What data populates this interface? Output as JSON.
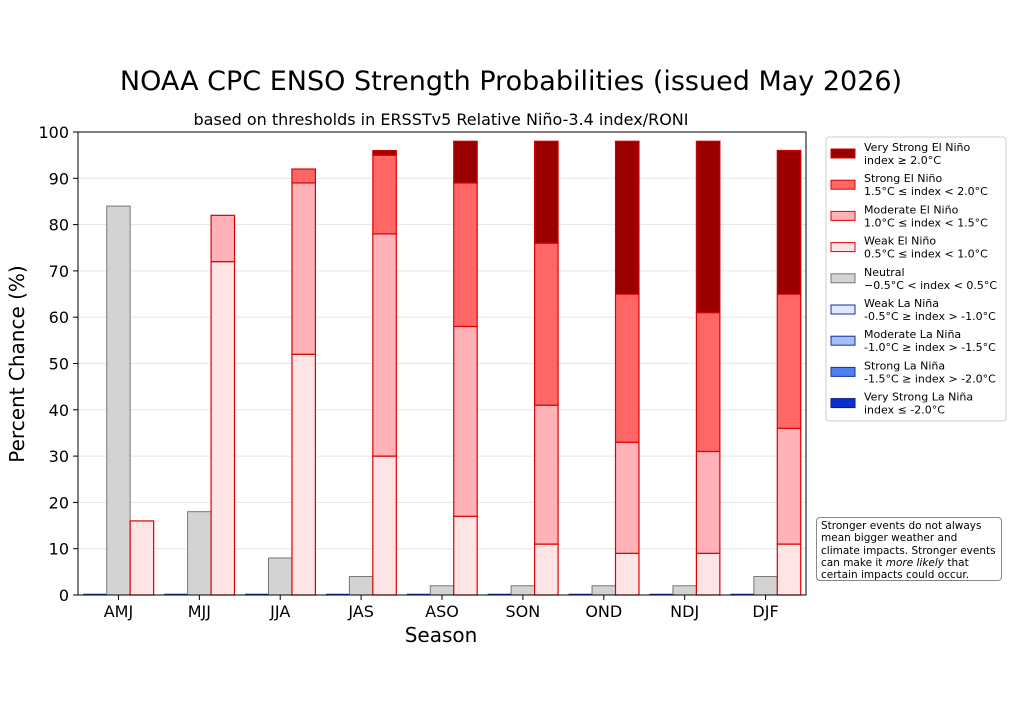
{
  "chart_data": {
    "type": "bar",
    "title": "NOAA CPC ENSO Strength Probabilities (issued May 2026)",
    "subtitle": "based on thresholds in ERSSTv5 Relative Niño-3.4 index/RONI",
    "xlabel": "Season",
    "ylabel": "Percent Chance (%)",
    "ylim": [
      0,
      100
    ],
    "yticks": [
      0,
      10,
      20,
      30,
      40,
      50,
      60,
      70,
      80,
      90,
      100
    ],
    "grid": true,
    "legend_position": "right",
    "categories": [
      "AMJ",
      "MJJ",
      "JJA",
      "JAS",
      "ASO",
      "SON",
      "OND",
      "NDJ",
      "DJF"
    ],
    "groups": [
      "La Niña (stacked)",
      "Neutral",
      "El Niño (stacked)"
    ],
    "series": [
      {
        "name": "Very Strong El Niño",
        "range": "index ≥ 2.0°C",
        "group": "El Niño",
        "color": "#9b0000",
        "edge": "#cc0000",
        "values": [
          0,
          0,
          0,
          1,
          9,
          22,
          33,
          37,
          31
        ]
      },
      {
        "name": "Strong El Niño",
        "range": "1.5°C ≤ index < 2.0°C",
        "group": "El Niño",
        "color": "#ff6666",
        "edge": "#dd0000",
        "values": [
          0,
          0,
          3,
          17,
          31,
          35,
          32,
          30,
          29
        ]
      },
      {
        "name": "Moderate El Niño",
        "range": "1.0°C ≤ index < 1.5°C",
        "group": "El Niño",
        "color": "#ffb3b8",
        "edge": "#dd0000",
        "values": [
          0,
          10,
          37,
          48,
          41,
          30,
          24,
          22,
          25
        ]
      },
      {
        "name": "Weak El Niño",
        "range": "0.5°C ≤ index < 1.0°C",
        "group": "El Niño",
        "color": "#ffe4e6",
        "edge": "#dd0000",
        "values": [
          16,
          72,
          52,
          30,
          17,
          11,
          9,
          9,
          11
        ]
      },
      {
        "name": "Neutral",
        "range": "−0.5°C < index < 0.5°C",
        "group": "Neutral",
        "color": "#d3d3d3",
        "edge": "#777777",
        "values": [
          84,
          18,
          8,
          4,
          2,
          2,
          2,
          2,
          4
        ]
      },
      {
        "name": "Weak La Niña",
        "range": "-0.5°C ≥ index > -1.0°C",
        "group": "La Niña",
        "color": "#dfe8ff",
        "edge": "#1a2fa0",
        "values": [
          0,
          0,
          0,
          0,
          0,
          0,
          0,
          0,
          0
        ]
      },
      {
        "name": "Moderate La Niña",
        "range": "-1.0°C ≥ index > -1.5°C",
        "group": "La Niña",
        "color": "#a3bff7",
        "edge": "#1a2fa0",
        "values": [
          0,
          0,
          0,
          0,
          0,
          0,
          0,
          0,
          0
        ]
      },
      {
        "name": "Strong La Niña",
        "range": "-1.5°C ≥ index > -2.0°C",
        "group": "La Niña",
        "color": "#4d7ff0",
        "edge": "#1a2fa0",
        "values": [
          0,
          0,
          0,
          0,
          0,
          0,
          0,
          0,
          0
        ]
      },
      {
        "name": "Very Strong La Niña",
        "range": "index ≤ -2.0°C",
        "group": "La Niña",
        "color": "#0a2fd0",
        "edge": "#061a80",
        "values": [
          0,
          0,
          0,
          0,
          0,
          0,
          0,
          0,
          0
        ]
      }
    ],
    "annotation": {
      "part1": "Stronger events do not always mean bigger weather and climate impacts. Stronger events can make it ",
      "emphasis": "more likely",
      "part2": " that certain impacts could occur."
    }
  }
}
